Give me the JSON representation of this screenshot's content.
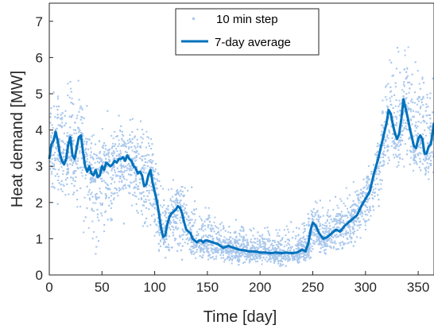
{
  "chart_data": {
    "type": "line",
    "title": "",
    "xlabel": "Time [day]",
    "ylabel": "Heat demand [MW]",
    "xlim": [
      0,
      365
    ],
    "ylim": [
      0,
      7.5
    ],
    "xticks": [
      0,
      50,
      100,
      150,
      200,
      250,
      300,
      350
    ],
    "yticks": [
      0,
      1,
      2,
      3,
      4,
      5,
      6,
      7
    ],
    "grid": false,
    "legend_position": "top-center",
    "series": [
      {
        "name": "10 min step",
        "style": "scatter",
        "color": "#a9c7ec",
        "values_summary": "dense scatter of 10-minute samples spread around the 7-day average"
      },
      {
        "name": "7-day average",
        "style": "line",
        "color": "#0072bd",
        "x": [
          0,
          2,
          4,
          6,
          8,
          10,
          12,
          14,
          16,
          18,
          20,
          22,
          24,
          26,
          28,
          30,
          32,
          34,
          36,
          38,
          40,
          42,
          44,
          46,
          48,
          50,
          52,
          54,
          56,
          58,
          60,
          62,
          64,
          66,
          68,
          70,
          72,
          74,
          76,
          78,
          80,
          82,
          84,
          86,
          88,
          90,
          92,
          94,
          96,
          98,
          100,
          102,
          104,
          106,
          108,
          110,
          112,
          114,
          116,
          118,
          120,
          122,
          124,
          126,
          128,
          130,
          132,
          134,
          136,
          138,
          140,
          142,
          144,
          146,
          148,
          150,
          155,
          160,
          165,
          170,
          175,
          180,
          185,
          190,
          195,
          200,
          205,
          210,
          215,
          220,
          225,
          230,
          235,
          240,
          243,
          246,
          248,
          250,
          253,
          256,
          260,
          264,
          268,
          272,
          276,
          280,
          284,
          288,
          292,
          296,
          300,
          304,
          308,
          312,
          316,
          320,
          322,
          324,
          326,
          328,
          330,
          332,
          334,
          336,
          338,
          340,
          342,
          344,
          346,
          348,
          350,
          352,
          354,
          356,
          358,
          360,
          362,
          365
        ],
        "values": [
          3.2,
          3.6,
          3.7,
          3.95,
          3.7,
          3.35,
          3.15,
          3.05,
          3.2,
          3.6,
          3.8,
          3.3,
          3.2,
          3.5,
          3.8,
          3.85,
          3.4,
          3.0,
          2.85,
          3.0,
          2.8,
          2.75,
          2.9,
          2.7,
          2.75,
          3.0,
          2.9,
          3.1,
          3.05,
          3.0,
          3.05,
          3.15,
          3.1,
          3.2,
          3.2,
          3.25,
          3.15,
          3.3,
          3.2,
          3.15,
          3.0,
          2.95,
          2.8,
          2.85,
          2.75,
          2.45,
          2.5,
          2.75,
          2.9,
          2.55,
          2.3,
          2.05,
          1.7,
          1.3,
          1.05,
          1.1,
          1.4,
          1.6,
          1.7,
          1.75,
          1.8,
          1.9,
          1.85,
          1.7,
          1.45,
          1.25,
          1.2,
          1.15,
          1.0,
          0.95,
          0.9,
          0.95,
          0.95,
          0.9,
          0.95,
          0.95,
          0.9,
          0.85,
          0.75,
          0.8,
          0.75,
          0.7,
          0.68,
          0.65,
          0.65,
          0.62,
          0.62,
          0.6,
          0.62,
          0.6,
          0.62,
          0.6,
          0.62,
          0.7,
          0.65,
          0.9,
          1.25,
          1.45,
          1.35,
          1.15,
          1.0,
          1.05,
          1.15,
          1.25,
          1.2,
          1.35,
          1.45,
          1.55,
          1.65,
          1.9,
          2.1,
          2.3,
          2.8,
          3.2,
          3.7,
          4.2,
          4.55,
          4.45,
          4.15,
          3.9,
          3.75,
          3.9,
          4.3,
          4.85,
          4.6,
          4.35,
          4.05,
          3.8,
          3.55,
          3.5,
          3.75,
          3.85,
          3.75,
          3.35,
          3.35,
          3.55,
          3.6,
          4.2
        ]
      }
    ],
    "scatter_envelope": {
      "x": [
        0,
        10,
        20,
        30,
        40,
        50,
        60,
        70,
        80,
        90,
        100,
        105,
        110,
        120,
        130,
        140,
        150,
        160,
        170,
        180,
        190,
        200,
        210,
        220,
        230,
        240,
        250,
        260,
        270,
        280,
        290,
        300,
        310,
        320,
        330,
        340,
        350,
        360,
        365
      ],
      "upper": [
        5.6,
        5.1,
        5.7,
        5.4,
        4.7,
        4.6,
        4.6,
        4.8,
        4.6,
        4.4,
        3.6,
        3.0,
        2.5,
        2.8,
        2.6,
        2.3,
        2.2,
        1.8,
        1.7,
        1.5,
        1.5,
        1.4,
        1.4,
        1.4,
        1.5,
        1.6,
        2.5,
        2.1,
        2.2,
        2.5,
        2.8,
        3.1,
        3.8,
        6.2,
        6.4,
        6.9,
        6.7,
        5.9,
        6.1
      ],
      "lower": [
        2.0,
        1.7,
        1.4,
        0.9,
        0.6,
        0.4,
        1.3,
        1.4,
        1.3,
        1.1,
        0.6,
        0.4,
        0.2,
        0.4,
        0.3,
        0.35,
        0.3,
        0.3,
        0.25,
        0.25,
        0.25,
        0.2,
        0.25,
        0.2,
        0.25,
        0.25,
        0.3,
        0.4,
        0.5,
        0.5,
        0.7,
        0.9,
        1.6,
        2.6,
        2.7,
        2.7,
        2.5,
        2.4,
        2.7
      ]
    }
  }
}
